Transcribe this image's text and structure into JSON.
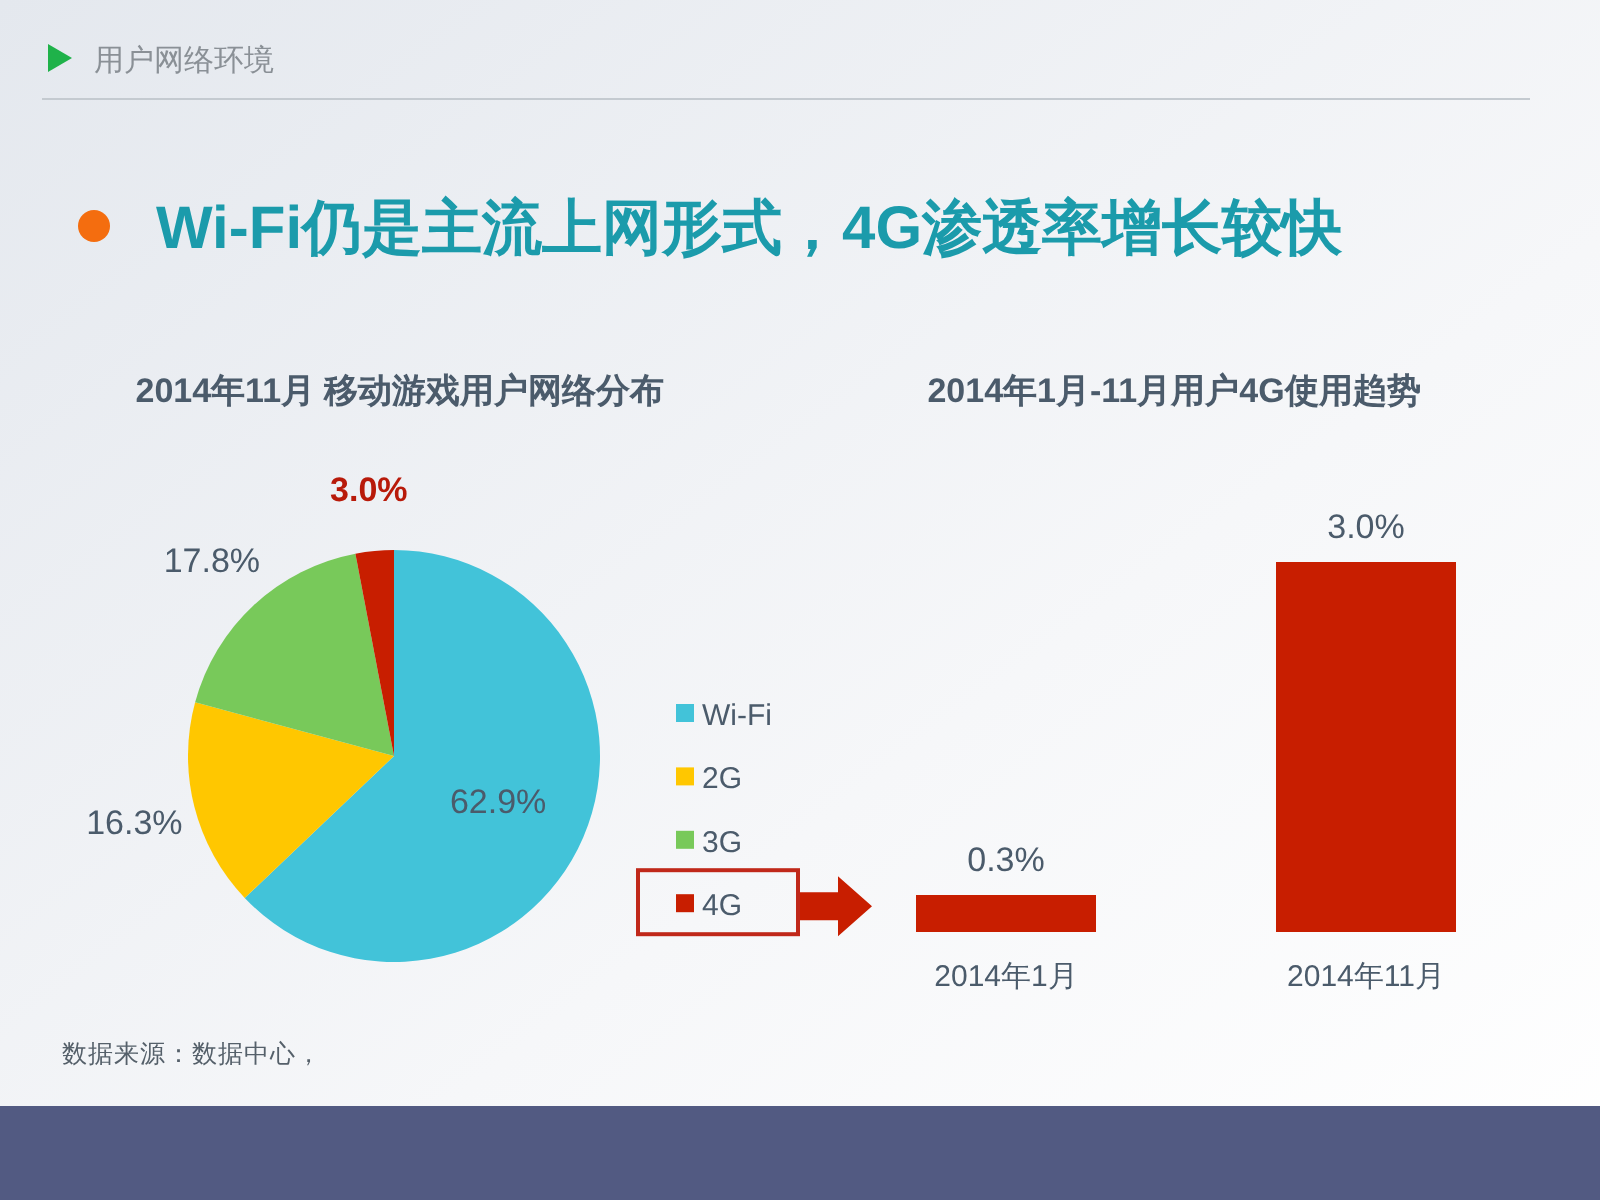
{
  "chart_data": [
    {
      "type": "other",
      "title": "Wi-Fi仍是主流上网形式，4G渗透率增长较快",
      "annotations": [
        "用户网络环境"
      ]
    },
    {
      "type": "pie",
      "title": "2014年11月 移动游戏用户网络分布",
      "categories": [
        "Wi-Fi",
        "2G",
        "3G",
        "4G"
      ],
      "values": [
        62.9,
        16.3,
        17.8,
        3.0
      ],
      "colors": [
        "#42c3d9",
        "#ffc700",
        "#78c95a",
        "#c81e00"
      ],
      "value_labels": [
        "62.9%",
        "16.3%",
        "17.8%",
        "3.0%"
      ],
      "legend": "right",
      "annotations": [
        "数据来源：数据中心，"
      ]
    },
    {
      "type": "bar",
      "title": "2014年1月-11月用户4G使用趋势",
      "categories": [
        "2014年1月",
        "2014年11月"
      ],
      "values": [
        0.3,
        3.0
      ],
      "color": "#c81e00",
      "value_labels": [
        "0.3%",
        "3.0%"
      ]
    }
  ]
}
